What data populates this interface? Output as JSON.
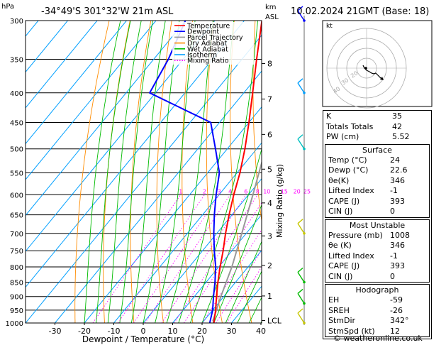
{
  "header": {
    "hpa_unit": "hPa",
    "location": "-34°49'S 301°32'W 21m ASL",
    "km_unit": "km",
    "asl_unit": "ASL",
    "datetime": "10.02.2024 21GMT (Base: 18)"
  },
  "chart_data": {
    "type": "skew-t",
    "xlabel": "Dewpoint / Temperature (°C)",
    "ylabel_right": "Mixing Ratio (g/kg)",
    "pressure_levels": [
      300,
      350,
      400,
      450,
      500,
      550,
      600,
      650,
      700,
      750,
      800,
      850,
      900,
      950,
      1000
    ],
    "temperature_ticks": [
      -30,
      -20,
      -10,
      0,
      10,
      20,
      30,
      40
    ],
    "height_km_ticks": [
      {
        "label": "8",
        "p": 356
      },
      {
        "label": "7",
        "p": 410
      },
      {
        "label": "6",
        "p": 472
      },
      {
        "label": "5",
        "p": 542
      },
      {
        "label": "4",
        "p": 620
      },
      {
        "label": "3",
        "p": 707
      },
      {
        "label": "2",
        "p": 795
      },
      {
        "label": "1",
        "p": 898
      },
      {
        "label": "LCL",
        "p": 990
      }
    ],
    "mixing_ratio_labels": [
      {
        "label": "1",
        "w": 1
      },
      {
        "label": "2",
        "w": 2
      },
      {
        "label": "3",
        "w": 3
      },
      {
        "label": "4",
        "w": 4
      },
      {
        "label": "6",
        "w": 6
      },
      {
        "label": "8",
        "w": 8
      },
      {
        "label": "10",
        "w": 10
      },
      {
        "label": "15",
        "w": 15
      },
      {
        "label": "20",
        "w": 20
      },
      {
        "label": "25",
        "w": 25
      }
    ],
    "legend": [
      {
        "name": "Temperature",
        "color": "#ff0000",
        "dash": "solid"
      },
      {
        "name": "Dewpoint",
        "color": "#0000ff",
        "dash": "solid"
      },
      {
        "name": "Parcel Trajectory",
        "color": "#999999",
        "dash": "solid"
      },
      {
        "name": "Dry Adiabat",
        "color": "#ff8c00",
        "dash": "solid"
      },
      {
        "name": "Wet Adiabat",
        "color": "#00bb00",
        "dash": "solid"
      },
      {
        "name": "Isotherm",
        "color": "#00a0ff",
        "dash": "solid"
      },
      {
        "name": "Mixing Ratio",
        "color": "#ff00ff",
        "dash": "dotted"
      }
    ],
    "temperature_profile": [
      {
        "p": 1000,
        "t": 24
      },
      {
        "p": 950,
        "t": 21
      },
      {
        "p": 900,
        "t": 17.5
      },
      {
        "p": 850,
        "t": 14
      },
      {
        "p": 800,
        "t": 10.5
      },
      {
        "p": 750,
        "t": 7
      },
      {
        "p": 700,
        "t": 3
      },
      {
        "p": 650,
        "t": -1
      },
      {
        "p": 600,
        "t": -5
      },
      {
        "p": 550,
        "t": -9
      },
      {
        "p": 500,
        "t": -14
      },
      {
        "p": 450,
        "t": -20
      },
      {
        "p": 400,
        "t": -27
      },
      {
        "p": 350,
        "t": -35
      },
      {
        "p": 300,
        "t": -44
      }
    ],
    "dewpoint_profile": [
      {
        "p": 1000,
        "t": 22.6
      },
      {
        "p": 950,
        "t": 20
      },
      {
        "p": 900,
        "t": 16.5
      },
      {
        "p": 850,
        "t": 13
      },
      {
        "p": 800,
        "t": 9
      },
      {
        "p": 750,
        "t": 4
      },
      {
        "p": 700,
        "t": -1
      },
      {
        "p": 650,
        "t": -6
      },
      {
        "p": 600,
        "t": -11
      },
      {
        "p": 550,
        "t": -16
      },
      {
        "p": 500,
        "t": -24
      },
      {
        "p": 450,
        "t": -33
      },
      {
        "p": 400,
        "t": -62
      },
      {
        "p": 350,
        "t": -65
      },
      {
        "p": 300,
        "t": -70
      }
    ],
    "parcel_profile": [
      {
        "p": 1000,
        "t": 24
      },
      {
        "p": 990,
        "t": 23
      },
      {
        "p": 900,
        "t": 19
      },
      {
        "p": 800,
        "t": 14.5
      },
      {
        "p": 700,
        "t": 8.5
      },
      {
        "p": 600,
        "t": 1.5
      },
      {
        "p": 500,
        "t": -7
      },
      {
        "p": 400,
        "t": -19
      },
      {
        "p": 300,
        "t": -36
      }
    ],
    "wind_barbs": [
      {
        "p": 300,
        "color": "#0000ff"
      },
      {
        "p": 400,
        "color": "#00a0ff"
      },
      {
        "p": 500,
        "color": "#00c0c0"
      },
      {
        "p": 700,
        "color": "#c8c800"
      },
      {
        "p": 850,
        "color": "#00bb00"
      },
      {
        "p": 925,
        "color": "#00bb00"
      },
      {
        "p": 1000,
        "color": "#c8c800"
      }
    ]
  },
  "hodograph": {
    "unit": "kt",
    "ring_labels": [
      "40",
      "30",
      "20"
    ]
  },
  "indices": {
    "basic": [
      {
        "label": "K",
        "value": "35"
      },
      {
        "label": "Totals Totals",
        "value": "42"
      },
      {
        "label": "PW (cm)",
        "value": "5.52"
      }
    ],
    "surface": {
      "title": "Surface",
      "rows": [
        {
          "label": "Temp (°C)",
          "value": "24"
        },
        {
          "label": "Dewp (°C)",
          "value": "22.6"
        },
        {
          "label": "θe(K)",
          "value": "346"
        },
        {
          "label": "Lifted Index",
          "value": "-1"
        },
        {
          "label": "CAPE (J)",
          "value": "393"
        },
        {
          "label": "CIN (J)",
          "value": "0"
        }
      ]
    },
    "most_unstable": {
      "title": "Most Unstable",
      "rows": [
        {
          "label": "Pressure (mb)",
          "value": "1008"
        },
        {
          "label": "θe (K)",
          "value": "346"
        },
        {
          "label": "Lifted Index",
          "value": "-1"
        },
        {
          "label": "CAPE (J)",
          "value": "393"
        },
        {
          "label": "CIN (J)",
          "value": "0"
        }
      ]
    },
    "hodograph": {
      "title": "Hodograph",
      "rows": [
        {
          "label": "EH",
          "value": "-59"
        },
        {
          "label": "SREH",
          "value": "-26"
        },
        {
          "label": "StmDir",
          "value": "342°"
        },
        {
          "label": "StmSpd (kt)",
          "value": "12"
        }
      ]
    }
  },
  "footer": {
    "copyright": "© weatheronline.co.uk"
  },
  "colors": {
    "temperature": "#ff0000",
    "dewpoint": "#0000ff",
    "parcel": "#999999",
    "dry_adiabat": "#ff8c00",
    "wet_adiabat": "#00bb00",
    "isotherm": "#00a0ff",
    "mixing_ratio": "#ff00ff"
  }
}
